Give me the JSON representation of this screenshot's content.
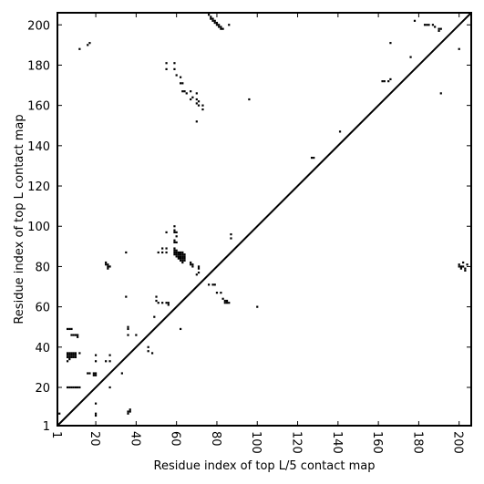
{
  "chart_data": {
    "type": "heatmap",
    "title": "",
    "xlabel": "Residue index of top L/5 contact map",
    "ylabel": "Residue index of top L contact map",
    "xlim": [
      1,
      206
    ],
    "ylim": [
      1,
      206
    ],
    "x_ticks": [
      1,
      20,
      40,
      60,
      80,
      100,
      120,
      140,
      160,
      180,
      200
    ],
    "y_ticks": [
      1,
      20,
      40,
      60,
      80,
      100,
      120,
      140,
      160,
      180,
      200
    ],
    "x_tick_rotation": "vertical",
    "diagonal_line": true,
    "grid": false,
    "colors": {
      "cell": "#000000",
      "background": "#ffffff"
    },
    "upper_triangle_contacts": [
      [
        76,
        205
      ],
      [
        77,
        204
      ],
      [
        77,
        203
      ],
      [
        78,
        203
      ],
      [
        78,
        202
      ],
      [
        79,
        202
      ],
      [
        79,
        201
      ],
      [
        80,
        201
      ],
      [
        80,
        200
      ],
      [
        81,
        200
      ],
      [
        81,
        199
      ],
      [
        82,
        199
      ],
      [
        82,
        198
      ],
      [
        83,
        198
      ],
      [
        86,
        200
      ],
      [
        12,
        188
      ],
      [
        16,
        190
      ],
      [
        17,
        191
      ],
      [
        55,
        181
      ],
      [
        55,
        178
      ],
      [
        59,
        181
      ],
      [
        59,
        178
      ],
      [
        60,
        175
      ],
      [
        62,
        174
      ],
      [
        62,
        171
      ],
      [
        63,
        171
      ],
      [
        63,
        167
      ],
      [
        64,
        167
      ],
      [
        65,
        166
      ],
      [
        67,
        167
      ],
      [
        67,
        163
      ],
      [
        68,
        164
      ],
      [
        70,
        166
      ],
      [
        70,
        163
      ],
      [
        70,
        161
      ],
      [
        71,
        162
      ],
      [
        71,
        160
      ],
      [
        73,
        160
      ],
      [
        73,
        158
      ],
      [
        70,
        152
      ],
      [
        96,
        163
      ],
      [
        127,
        134
      ],
      [
        128,
        134
      ],
      [
        141,
        147
      ],
      [
        162,
        172
      ],
      [
        163,
        172
      ],
      [
        165,
        172
      ],
      [
        166,
        173
      ],
      [
        166,
        191
      ],
      [
        176,
        184
      ],
      [
        178,
        202
      ],
      [
        183,
        200
      ],
      [
        184,
        200
      ],
      [
        185,
        200
      ],
      [
        187,
        200
      ],
      [
        188,
        199
      ],
      [
        190,
        198
      ],
      [
        190,
        197
      ],
      [
        191,
        198
      ],
      [
        191,
        166
      ],
      [
        200,
        188
      ]
    ],
    "lower_triangle_contacts": [
      [
        2,
        7
      ],
      [
        6,
        35
      ],
      [
        6,
        36
      ],
      [
        6,
        37
      ],
      [
        7,
        35
      ],
      [
        7,
        36
      ],
      [
        7,
        37
      ],
      [
        8,
        35
      ],
      [
        8,
        36
      ],
      [
        8,
        37
      ],
      [
        9,
        35
      ],
      [
        9,
        36
      ],
      [
        9,
        37
      ],
      [
        10,
        35
      ],
      [
        10,
        36
      ],
      [
        10,
        37
      ],
      [
        6,
        33
      ],
      [
        7,
        34
      ],
      [
        6,
        49
      ],
      [
        7,
        49
      ],
      [
        8,
        49
      ],
      [
        8,
        46
      ],
      [
        9,
        46
      ],
      [
        10,
        46
      ],
      [
        11,
        45
      ],
      [
        11,
        46
      ],
      [
        6,
        20
      ],
      [
        7,
        20
      ],
      [
        8,
        20
      ],
      [
        9,
        20
      ],
      [
        10,
        20
      ],
      [
        11,
        20
      ],
      [
        12,
        37
      ],
      [
        12,
        20
      ],
      [
        16,
        27
      ],
      [
        17,
        27
      ],
      [
        19,
        27
      ],
      [
        19,
        26
      ],
      [
        20,
        27
      ],
      [
        20,
        26
      ],
      [
        20,
        33
      ],
      [
        20,
        36
      ],
      [
        20,
        12
      ],
      [
        20,
        7
      ],
      [
        20,
        6
      ],
      [
        25,
        33
      ],
      [
        27,
        33
      ],
      [
        27,
        36
      ],
      [
        27,
        20
      ],
      [
        33,
        27
      ],
      [
        25,
        82
      ],
      [
        25,
        81
      ],
      [
        26,
        81
      ],
      [
        26,
        80
      ],
      [
        26,
        79
      ],
      [
        27,
        80
      ],
      [
        35,
        87
      ],
      [
        35,
        65
      ],
      [
        36,
        50
      ],
      [
        36,
        49
      ],
      [
        36,
        46
      ],
      [
        36,
        8
      ],
      [
        36,
        7
      ],
      [
        37,
        9
      ],
      [
        37,
        8
      ],
      [
        40,
        46
      ],
      [
        46,
        40
      ],
      [
        46,
        38
      ],
      [
        48,
        37
      ],
      [
        49,
        55
      ],
      [
        50,
        63
      ],
      [
        50,
        65
      ],
      [
        51,
        87
      ],
      [
        51,
        62
      ],
      [
        53,
        89
      ],
      [
        53,
        87
      ],
      [
        53,
        62
      ],
      [
        55,
        97
      ],
      [
        55,
        89
      ],
      [
        55,
        87
      ],
      [
        55,
        62
      ],
      [
        56,
        62
      ],
      [
        56,
        61
      ],
      [
        59,
        100
      ],
      [
        59,
        98
      ],
      [
        59,
        97
      ],
      [
        59,
        93
      ],
      [
        59,
        92
      ],
      [
        59,
        89
      ],
      [
        59,
        88
      ],
      [
        59,
        87
      ],
      [
        59,
        86
      ],
      [
        60,
        97
      ],
      [
        60,
        95
      ],
      [
        60,
        92
      ],
      [
        60,
        88
      ],
      [
        60,
        87
      ],
      [
        60,
        86
      ],
      [
        60,
        85
      ],
      [
        61,
        87
      ],
      [
        61,
        86
      ],
      [
        61,
        85
      ],
      [
        61,
        84
      ],
      [
        62,
        87
      ],
      [
        62,
        86
      ],
      [
        62,
        85
      ],
      [
        62,
        84
      ],
      [
        62,
        83
      ],
      [
        62,
        49
      ],
      [
        63,
        87
      ],
      [
        63,
        86
      ],
      [
        63,
        85
      ],
      [
        63,
        84
      ],
      [
        63,
        83
      ],
      [
        63,
        82
      ],
      [
        64,
        86
      ],
      [
        64,
        85
      ],
      [
        64,
        84
      ],
      [
        64,
        83
      ],
      [
        67,
        82
      ],
      [
        67,
        81
      ],
      [
        68,
        81
      ],
      [
        68,
        80
      ],
      [
        70,
        76
      ],
      [
        71,
        80
      ],
      [
        71,
        79
      ],
      [
        71,
        77
      ],
      [
        76,
        71
      ],
      [
        78,
        71
      ],
      [
        79,
        71
      ],
      [
        80,
        67
      ],
      [
        82,
        67
      ],
      [
        83,
        64
      ],
      [
        84,
        63
      ],
      [
        84,
        62
      ],
      [
        85,
        63
      ],
      [
        85,
        62
      ],
      [
        86,
        62
      ],
      [
        87,
        96
      ],
      [
        87,
        94
      ],
      [
        100,
        60
      ],
      [
        200,
        81
      ],
      [
        200,
        80
      ],
      [
        201,
        80
      ],
      [
        201,
        79
      ],
      [
        202,
        82
      ],
      [
        202,
        80
      ],
      [
        203,
        79
      ],
      [
        203,
        78
      ],
      [
        204,
        81
      ]
    ]
  }
}
